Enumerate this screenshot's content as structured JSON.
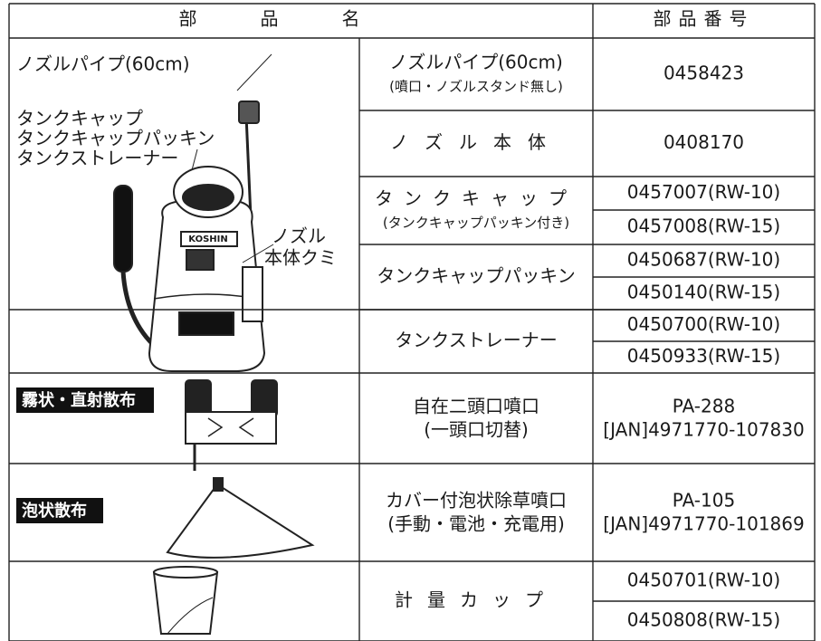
{
  "header": {
    "name": "部品名",
    "number": "部品番号"
  },
  "illustration_labels": {
    "nozzle_pipe": "ノズルパイプ(60cm)",
    "tank_parts": [
      "タンクキャップ",
      "タンクキャップパッキン",
      "タンクストレーナー"
    ],
    "nozzle_body": [
      "ノズル",
      "本体クミ"
    ],
    "brand": "KOSHIN"
  },
  "badges": [
    "霧状・直射散布",
    "泡状散布"
  ],
  "rows": [
    {
      "name": [
        "ノズルパイプ(60cm)",
        "(噴口・ノズルスタンド無し)"
      ],
      "numbers": [
        "0458423"
      ]
    },
    {
      "name": [
        "ノズル本体"
      ],
      "numbers": [
        "0408170"
      ]
    },
    {
      "name": [
        "タンクキャップ",
        "(タンクキャップパッキン付き)"
      ],
      "numbers": [
        "0457007(RW-10)",
        "0457008(RW-15)"
      ]
    },
    {
      "name": [
        "タンクキャップパッキン"
      ],
      "numbers": [
        "0450687(RW-10)",
        "0450140(RW-15)"
      ]
    },
    {
      "name": [
        "タンクストレーナー"
      ],
      "numbers": [
        "0450700(RW-10)",
        "0450933(RW-15)"
      ]
    },
    {
      "name": [
        "自在二頭口噴口",
        "(一頭口切替)"
      ],
      "number_lines": [
        "PA-288",
        "[JAN]4971770-107830"
      ]
    },
    {
      "name": [
        "カバー付泡状除草噴口",
        "(手動・電池・充電用)"
      ],
      "number_lines": [
        "PA-105",
        "[JAN]4971770-101869"
      ]
    },
    {
      "name": [
        "計量カップ"
      ],
      "numbers": [
        "0450701(RW-10)",
        "0450808(RW-15)"
      ]
    }
  ]
}
